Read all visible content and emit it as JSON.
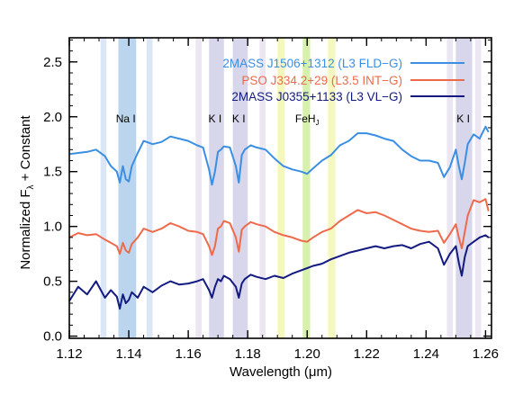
{
  "chart_data": {
    "type": "line",
    "xlabel": "Wavelength (μm)",
    "ylabel": "Normalized F_λ + Constant",
    "xlim": [
      1.12,
      1.262
    ],
    "ylim": [
      -0.02,
      2.72
    ],
    "xticks": [
      "1.12",
      "1.14",
      "1.16",
      "1.18",
      "1.20",
      "1.22",
      "1.24",
      "1.26"
    ],
    "yticks": [
      "0.0",
      "0.5",
      "1.0",
      "1.5",
      "2.0",
      "2.5"
    ],
    "legend_position": "top-right",
    "series": [
      {
        "name": "2MASS J1506+1312 (L3 FLD−G)",
        "color": "#3a8fe3",
        "x": [
          1.12,
          1.123,
          1.126,
          1.129,
          1.132,
          1.134,
          1.136,
          1.137,
          1.138,
          1.139,
          1.14,
          1.141,
          1.143,
          1.145,
          1.148,
          1.151,
          1.154,
          1.157,
          1.16,
          1.163,
          1.165,
          1.167,
          1.168,
          1.169,
          1.17,
          1.171,
          1.172,
          1.174,
          1.176,
          1.177,
          1.178,
          1.179,
          1.181,
          1.183,
          1.186,
          1.189,
          1.192,
          1.195,
          1.198,
          1.2,
          1.202,
          1.205,
          1.208,
          1.211,
          1.214,
          1.217,
          1.22,
          1.223,
          1.226,
          1.229,
          1.232,
          1.235,
          1.238,
          1.241,
          1.244,
          1.246,
          1.248,
          1.25,
          1.251,
          1.252,
          1.253,
          1.254,
          1.256,
          1.258,
          1.26,
          1.261
        ],
        "y": [
          1.66,
          1.67,
          1.68,
          1.7,
          1.64,
          1.55,
          1.5,
          1.4,
          1.55,
          1.43,
          1.41,
          1.55,
          1.67,
          1.78,
          1.75,
          1.77,
          1.82,
          1.8,
          1.78,
          1.74,
          1.72,
          1.52,
          1.38,
          1.5,
          1.68,
          1.7,
          1.73,
          1.72,
          1.55,
          1.4,
          1.65,
          1.7,
          1.74,
          1.72,
          1.7,
          1.62,
          1.55,
          1.52,
          1.5,
          1.48,
          1.53,
          1.6,
          1.65,
          1.74,
          1.78,
          1.85,
          1.85,
          1.83,
          1.8,
          1.78,
          1.7,
          1.64,
          1.6,
          1.6,
          1.58,
          1.45,
          1.54,
          1.7,
          1.55,
          1.43,
          1.58,
          1.75,
          1.84,
          1.8,
          1.91,
          1.86
        ]
      },
      {
        "name": "PSO J334.2+29 (L3.5 INT−G)",
        "color": "#ee6a4a",
        "x": [
          1.12,
          1.123,
          1.126,
          1.129,
          1.132,
          1.134,
          1.136,
          1.137,
          1.138,
          1.139,
          1.14,
          1.141,
          1.143,
          1.145,
          1.148,
          1.151,
          1.154,
          1.157,
          1.16,
          1.163,
          1.165,
          1.167,
          1.168,
          1.169,
          1.17,
          1.171,
          1.172,
          1.174,
          1.176,
          1.177,
          1.178,
          1.179,
          1.181,
          1.183,
          1.186,
          1.189,
          1.192,
          1.195,
          1.198,
          1.2,
          1.202,
          1.205,
          1.208,
          1.211,
          1.214,
          1.217,
          1.22,
          1.223,
          1.226,
          1.229,
          1.232,
          1.235,
          1.238,
          1.241,
          1.244,
          1.246,
          1.248,
          1.25,
          1.251,
          1.252,
          1.253,
          1.254,
          1.256,
          1.258,
          1.26,
          1.261
        ],
        "y": [
          0.9,
          0.94,
          0.92,
          0.93,
          0.88,
          0.85,
          0.82,
          0.75,
          0.85,
          0.78,
          0.76,
          0.84,
          0.9,
          0.98,
          0.95,
          0.98,
          1.03,
          1.0,
          0.96,
          0.95,
          0.93,
          0.82,
          0.74,
          0.82,
          0.98,
          1.0,
          1.05,
          1.03,
          0.9,
          0.77,
          0.97,
          1.0,
          1.04,
          1.02,
          1.0,
          0.95,
          0.92,
          0.9,
          0.87,
          0.86,
          0.9,
          0.95,
          0.98,
          1.05,
          1.1,
          1.15,
          1.12,
          1.13,
          1.1,
          1.06,
          1.02,
          0.98,
          0.96,
          0.95,
          0.96,
          0.85,
          0.93,
          1.02,
          0.9,
          0.8,
          0.95,
          1.1,
          1.24,
          1.22,
          1.25,
          1.14
        ]
      },
      {
        "name": "2MASS J0355+1133 (L3 VL−G)",
        "color": "#131a80",
        "x": [
          1.12,
          1.123,
          1.126,
          1.129,
          1.132,
          1.134,
          1.136,
          1.137,
          1.138,
          1.139,
          1.14,
          1.141,
          1.143,
          1.145,
          1.148,
          1.151,
          1.154,
          1.157,
          1.16,
          1.163,
          1.165,
          1.167,
          1.168,
          1.169,
          1.17,
          1.171,
          1.172,
          1.174,
          1.176,
          1.177,
          1.178,
          1.179,
          1.181,
          1.183,
          1.186,
          1.189,
          1.192,
          1.195,
          1.198,
          1.2,
          1.202,
          1.205,
          1.208,
          1.211,
          1.214,
          1.217,
          1.22,
          1.223,
          1.226,
          1.229,
          1.232,
          1.235,
          1.238,
          1.241,
          1.244,
          1.246,
          1.248,
          1.25,
          1.251,
          1.252,
          1.253,
          1.254,
          1.256,
          1.258,
          1.26,
          1.261
        ],
        "y": [
          0.32,
          0.45,
          0.38,
          0.5,
          0.35,
          0.42,
          0.36,
          0.25,
          0.38,
          0.3,
          0.33,
          0.4,
          0.35,
          0.45,
          0.4,
          0.46,
          0.5,
          0.47,
          0.48,
          0.5,
          0.52,
          0.42,
          0.35,
          0.45,
          0.52,
          0.5,
          0.55,
          0.52,
          0.45,
          0.35,
          0.48,
          0.52,
          0.56,
          0.54,
          0.52,
          0.55,
          0.53,
          0.57,
          0.6,
          0.62,
          0.64,
          0.66,
          0.7,
          0.73,
          0.76,
          0.78,
          0.8,
          0.82,
          0.8,
          0.82,
          0.83,
          0.8,
          0.84,
          0.86,
          0.8,
          0.65,
          0.75,
          0.82,
          0.67,
          0.55,
          0.72,
          0.82,
          0.86,
          0.9,
          0.92,
          0.9
        ]
      }
    ],
    "line_labels": [
      {
        "text": "Na I",
        "x": 1.139
      },
      {
        "text": "K I",
        "x": 1.169
      },
      {
        "text": "K I",
        "x": 1.177
      },
      {
        "text": "FeH",
        "sub": "J",
        "x": 1.2
      },
      {
        "text": "K I",
        "x": 1.2525
      }
    ],
    "bands": [
      {
        "x0": 1.1305,
        "x1": 1.1325,
        "color": "#dbe6f6"
      },
      {
        "x0": 1.1365,
        "x1": 1.1425,
        "color": "#bcd5ee"
      },
      {
        "x0": 1.146,
        "x1": 1.148,
        "color": "#dbe6f6"
      },
      {
        "x0": 1.1625,
        "x1": 1.1645,
        "color": "#ebe6f2"
      },
      {
        "x0": 1.167,
        "x1": 1.172,
        "color": "#d7d6ea"
      },
      {
        "x0": 1.175,
        "x1": 1.18,
        "color": "#d7d6ea"
      },
      {
        "x0": 1.184,
        "x1": 1.186,
        "color": "#ebe6f2"
      },
      {
        "x0": 1.19,
        "x1": 1.1925,
        "color": "#f4f8bf"
      },
      {
        "x0": 1.1985,
        "x1": 1.201,
        "color": "#d7f0ad"
      },
      {
        "x0": 1.207,
        "x1": 1.2095,
        "color": "#f4f8bf"
      },
      {
        "x0": 1.247,
        "x1": 1.249,
        "color": "#ebe6f2"
      },
      {
        "x0": 1.25,
        "x1": 1.2555,
        "color": "#d7d6ea"
      },
      {
        "x0": 1.2565,
        "x1": 1.2585,
        "color": "#ebe6f2"
      }
    ]
  }
}
